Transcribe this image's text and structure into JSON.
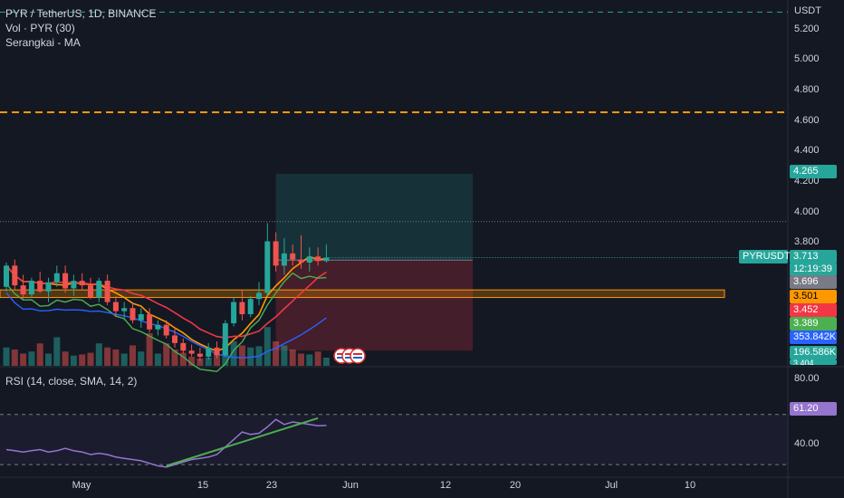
{
  "header": {
    "symbol_line": "PYR / TetherUS, 1D, BINANCE",
    "volume_line": "Vol · PYR (30)",
    "ma_line": "Serangkai - MA",
    "rsi_line": "RSI (14, close, SMA, 14, 2)"
  },
  "price_axis": {
    "currency": "USDT",
    "ticks": [
      "5.200",
      "5.000",
      "4.800",
      "4.600",
      "4.400",
      "4.200",
      "4.000",
      "3.800"
    ],
    "rsi_ticks": [
      "80.00",
      "40.00"
    ]
  },
  "badges": {
    "target": "4.265",
    "symbol": "PYRUSDT",
    "last_price": "3.713",
    "countdown": "12:19:39",
    "ma1": "3.696",
    "ma2": "3.501",
    "ma3": "3.452",
    "ma4": "3.389",
    "vol1": "353.842K",
    "vol2": "196.586K",
    "partial": "3.404",
    "rsi": "61.20"
  },
  "time_axis": {
    "labels": [
      "May",
      "15",
      "23",
      "Jun",
      "12",
      "20",
      "Jul",
      "10"
    ]
  },
  "colors": {
    "up": "#26a69a",
    "down": "#ef5350",
    "orange": "#ff9800",
    "ma_red": "#f23645",
    "ma_green": "#4caf50",
    "ma_blue": "#2962ff",
    "rsi": "#9575cd",
    "background": "#141823"
  },
  "chart_data": {
    "type": "candlestick",
    "title": "PYR / TetherUS, 1D, BINANCE",
    "ylim": [
      3.0,
      5.35
    ],
    "horizontal_levels": [
      5.33,
      4.67,
      3.95
    ],
    "zone": [
      3.45,
      3.5
    ],
    "candles": [
      {
        "o": 3.52,
        "h": 3.68,
        "l": 3.49,
        "c": 3.66,
        "v": 0.45
      },
      {
        "o": 3.66,
        "h": 3.7,
        "l": 3.5,
        "c": 3.53,
        "v": 0.4
      },
      {
        "o": 3.53,
        "h": 3.6,
        "l": 3.44,
        "c": 3.47,
        "v": 0.3
      },
      {
        "o": 3.47,
        "h": 3.58,
        "l": 3.45,
        "c": 3.56,
        "v": 0.35
      },
      {
        "o": 3.56,
        "h": 3.62,
        "l": 3.48,
        "c": 3.49,
        "v": 0.55
      },
      {
        "o": 3.49,
        "h": 3.58,
        "l": 3.42,
        "c": 3.55,
        "v": 0.3
      },
      {
        "o": 3.55,
        "h": 3.66,
        "l": 3.52,
        "c": 3.61,
        "v": 0.7
      },
      {
        "o": 3.61,
        "h": 3.66,
        "l": 3.48,
        "c": 3.51,
        "v": 0.35
      },
      {
        "o": 3.51,
        "h": 3.6,
        "l": 3.46,
        "c": 3.56,
        "v": 0.25
      },
      {
        "o": 3.56,
        "h": 3.61,
        "l": 3.5,
        "c": 3.53,
        "v": 0.28
      },
      {
        "o": 3.53,
        "h": 3.58,
        "l": 3.44,
        "c": 3.45,
        "v": 0.32
      },
      {
        "o": 3.45,
        "h": 3.58,
        "l": 3.42,
        "c": 3.56,
        "v": 0.55
      },
      {
        "o": 3.56,
        "h": 3.6,
        "l": 3.4,
        "c": 3.42,
        "v": 0.45
      },
      {
        "o": 3.42,
        "h": 3.46,
        "l": 3.32,
        "c": 3.36,
        "v": 0.4
      },
      {
        "o": 3.36,
        "h": 3.42,
        "l": 3.3,
        "c": 3.38,
        "v": 0.3
      },
      {
        "o": 3.38,
        "h": 3.42,
        "l": 3.28,
        "c": 3.3,
        "v": 0.5
      },
      {
        "o": 3.3,
        "h": 3.38,
        "l": 3.25,
        "c": 3.34,
        "v": 0.35
      },
      {
        "o": 3.34,
        "h": 3.38,
        "l": 3.22,
        "c": 3.24,
        "v": 0.8
      },
      {
        "o": 3.24,
        "h": 3.3,
        "l": 3.2,
        "c": 3.27,
        "v": 0.3
      },
      {
        "o": 3.27,
        "h": 3.3,
        "l": 3.18,
        "c": 3.2,
        "v": 0.55
      },
      {
        "o": 3.2,
        "h": 3.25,
        "l": 3.12,
        "c": 3.15,
        "v": 0.4
      },
      {
        "o": 3.15,
        "h": 3.18,
        "l": 3.08,
        "c": 3.1,
        "v": 0.32
      },
      {
        "o": 3.1,
        "h": 3.14,
        "l": 3.06,
        "c": 3.08,
        "v": 0.22
      },
      {
        "o": 3.08,
        "h": 3.12,
        "l": 3.03,
        "c": 3.06,
        "v": 0.18
      },
      {
        "o": 3.06,
        "h": 3.15,
        "l": 3.04,
        "c": 3.12,
        "v": 0.2
      },
      {
        "o": 3.12,
        "h": 3.16,
        "l": 3.05,
        "c": 3.07,
        "v": 0.28
      },
      {
        "o": 3.07,
        "h": 3.3,
        "l": 3.06,
        "c": 3.28,
        "v": 0.55
      },
      {
        "o": 3.28,
        "h": 3.45,
        "l": 3.26,
        "c": 3.42,
        "v": 0.6
      },
      {
        "o": 3.42,
        "h": 3.5,
        "l": 3.3,
        "c": 3.34,
        "v": 0.5
      },
      {
        "o": 3.34,
        "h": 3.46,
        "l": 3.32,
        "c": 3.44,
        "v": 0.45
      },
      {
        "o": 3.44,
        "h": 3.55,
        "l": 3.4,
        "c": 3.48,
        "v": 0.48
      },
      {
        "o": 3.48,
        "h": 3.94,
        "l": 3.46,
        "c": 3.82,
        "v": 0.95
      },
      {
        "o": 3.82,
        "h": 3.88,
        "l": 3.62,
        "c": 3.66,
        "v": 0.6
      },
      {
        "o": 3.66,
        "h": 3.84,
        "l": 3.6,
        "c": 3.74,
        "v": 0.5
      },
      {
        "o": 3.74,
        "h": 3.8,
        "l": 3.66,
        "c": 3.7,
        "v": 0.4
      },
      {
        "o": 3.7,
        "h": 3.86,
        "l": 3.64,
        "c": 3.68,
        "v": 0.3
      },
      {
        "o": 3.68,
        "h": 3.78,
        "l": 3.62,
        "c": 3.72,
        "v": 0.28
      },
      {
        "o": 3.72,
        "h": 3.78,
        "l": 3.66,
        "c": 3.69,
        "v": 0.35
      },
      {
        "o": 3.69,
        "h": 3.8,
        "l": 3.68,
        "c": 3.713,
        "v": 0.2
      }
    ],
    "position": {
      "entry": 3.696,
      "target": 4.265,
      "stop": 3.1
    },
    "rsi": [
      42,
      41,
      40,
      41,
      42,
      40,
      41,
      43,
      41,
      40,
      38,
      39,
      38,
      36,
      35,
      34,
      33,
      31,
      29,
      28,
      30,
      32,
      34,
      35,
      36,
      38,
      44,
      50,
      56,
      54,
      55,
      60,
      66,
      62,
      64,
      63,
      62,
      61,
      61.2
    ],
    "rsi_ylim": [
      25,
      90
    ],
    "rsi_levels": [
      70,
      30
    ]
  }
}
